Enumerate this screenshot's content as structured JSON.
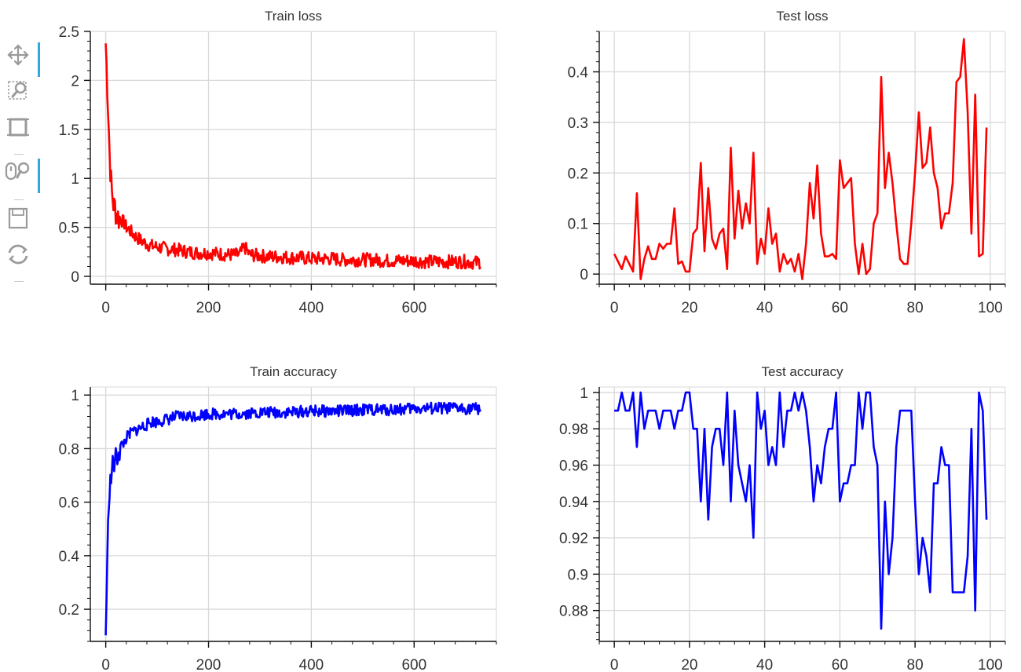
{
  "toolbar": {
    "tools": [
      {
        "name": "pan-tool-icon",
        "active": true
      },
      {
        "name": "box-zoom-icon",
        "active": false
      },
      {
        "name": "reset-tool-icon",
        "active": false
      },
      {
        "name": "wheel-zoom-icon",
        "active": true
      },
      {
        "name": "save-icon",
        "active": false
      },
      {
        "name": "refresh-icon",
        "active": false
      }
    ]
  },
  "chart_data": [
    {
      "type": "line",
      "title": "Train loss",
      "xlabel": "",
      "ylabel": "",
      "xlim": [
        -30,
        760
      ],
      "ylim": [
        -0.08,
        2.5
      ],
      "xticks": [
        0,
        200,
        400,
        600
      ],
      "yticks": [
        0,
        0.5,
        1,
        1.5,
        2,
        2.5
      ],
      "ytick_labels": [
        "0",
        "0.5",
        "1",
        "1.5",
        "2",
        "2.5"
      ],
      "grid": true,
      "series": [
        {
          "color": "#ff0000",
          "x": [
            0,
            2,
            4,
            6,
            8,
            10,
            12,
            14,
            16,
            18,
            20,
            25,
            30,
            35,
            40,
            45,
            50,
            55,
            60,
            65,
            70,
            80,
            90,
            100,
            120,
            140,
            160,
            180,
            200,
            220,
            240,
            260,
            270,
            280,
            300,
            320,
            340,
            360,
            380,
            400,
            420,
            440,
            460,
            480,
            500,
            520,
            540,
            560,
            580,
            600,
            620,
            640,
            660,
            680,
            700,
            720,
            730
          ],
          "y": [
            2.38,
            2.1,
            1.8,
            1.5,
            1.2,
            1.0,
            0.85,
            0.78,
            0.7,
            0.72,
            0.65,
            0.6,
            0.58,
            0.55,
            0.5,
            0.48,
            0.45,
            0.42,
            0.4,
            0.38,
            0.36,
            0.33,
            0.31,
            0.3,
            0.28,
            0.27,
            0.25,
            0.24,
            0.24,
            0.23,
            0.22,
            0.22,
            0.3,
            0.22,
            0.21,
            0.2,
            0.2,
            0.19,
            0.19,
            0.18,
            0.18,
            0.18,
            0.17,
            0.17,
            0.17,
            0.17,
            0.16,
            0.16,
            0.16,
            0.16,
            0.15,
            0.15,
            0.15,
            0.15,
            0.15,
            0.14,
            0.15
          ],
          "noise": 0.07
        }
      ]
    },
    {
      "type": "line",
      "title": "Test loss",
      "xlabel": "",
      "ylabel": "",
      "xlim": [
        -4,
        104
      ],
      "ylim": [
        -0.02,
        0.48
      ],
      "xticks": [
        0,
        20,
        40,
        60,
        80,
        100
      ],
      "yticks": [
        0,
        0.1,
        0.2,
        0.3,
        0.4
      ],
      "ytick_labels": [
        "0",
        "0.1",
        "0.2",
        "0.3",
        "0.4"
      ],
      "grid": true,
      "series": [
        {
          "color": "#ff0000",
          "x": [
            0,
            1,
            2,
            3,
            4,
            5,
            6,
            7,
            8,
            9,
            10,
            11,
            12,
            13,
            14,
            15,
            16,
            17,
            18,
            19,
            20,
            21,
            22,
            23,
            24,
            25,
            26,
            27,
            28,
            29,
            30,
            31,
            32,
            33,
            34,
            35,
            36,
            37,
            38,
            39,
            40,
            41,
            42,
            43,
            44,
            45,
            46,
            47,
            48,
            49,
            50,
            51,
            52,
            53,
            54,
            55,
            56,
            57,
            58,
            59,
            60,
            61,
            62,
            63,
            64,
            65,
            66,
            67,
            68,
            69,
            70,
            71,
            72,
            73,
            74,
            75,
            76,
            77,
            78,
            79,
            80,
            81,
            82,
            83,
            84,
            85,
            86,
            87,
            88,
            89,
            90,
            91,
            92,
            93,
            94,
            95,
            96,
            97,
            98,
            99
          ],
          "y": [
            0.04,
            0.025,
            0.01,
            0.035,
            0.02,
            0.005,
            0.16,
            -0.01,
            0.03,
            0.055,
            0.03,
            0.03,
            0.06,
            0.05,
            0.06,
            0.06,
            0.13,
            0.02,
            0.025,
            0.005,
            0.005,
            0.08,
            0.09,
            0.22,
            0.045,
            0.17,
            0.07,
            0.05,
            0.08,
            0.09,
            0.01,
            0.25,
            0.07,
            0.165,
            0.09,
            0.14,
            0.1,
            0.24,
            0.02,
            0.07,
            0.04,
            0.13,
            0.06,
            0.08,
            0.005,
            0.04,
            0.02,
            0.03,
            0.005,
            0.04,
            -0.01,
            0.06,
            0.18,
            0.11,
            0.215,
            0.08,
            0.035,
            0.035,
            0.04,
            0.03,
            0.225,
            0.17,
            0.18,
            0.19,
            0.06,
            0.0,
            0.06,
            0.0,
            0.01,
            0.1,
            0.12,
            0.39,
            0.17,
            0.24,
            0.18,
            0.1,
            0.03,
            0.02,
            0.02,
            0.1,
            0.2,
            0.32,
            0.21,
            0.22,
            0.29,
            0.2,
            0.17,
            0.09,
            0.12,
            0.12,
            0.18,
            0.38,
            0.39,
            0.465,
            0.32,
            0.08,
            0.355,
            0.035,
            0.04,
            0.29
          ]
        }
      ]
    },
    {
      "type": "line",
      "title": "Train accuracy",
      "xlabel": "",
      "ylabel": "",
      "xlim": [
        -30,
        760
      ],
      "ylim": [
        0.08,
        1.03
      ],
      "xticks": [
        0,
        200,
        400,
        600
      ],
      "yticks": [
        0.2,
        0.4,
        0.6,
        0.8,
        1
      ],
      "ytick_labels": [
        "0.2",
        "0.4",
        "0.6",
        "0.8",
        "1"
      ],
      "grid": true,
      "series": [
        {
          "color": "#0000ff",
          "x": [
            0,
            1,
            2,
            3,
            4,
            5,
            6,
            8,
            10,
            12,
            15,
            20,
            25,
            30,
            35,
            40,
            50,
            60,
            70,
            80,
            90,
            100,
            120,
            140,
            160,
            180,
            200,
            250,
            300,
            350,
            400,
            450,
            500,
            550,
            600,
            650,
            700,
            730
          ],
          "y": [
            0.1,
            0.2,
            0.3,
            0.36,
            0.45,
            0.55,
            0.62,
            0.66,
            0.68,
            0.72,
            0.74,
            0.76,
            0.79,
            0.81,
            0.82,
            0.84,
            0.86,
            0.87,
            0.88,
            0.89,
            0.9,
            0.9,
            0.91,
            0.92,
            0.92,
            0.925,
            0.93,
            0.93,
            0.935,
            0.935,
            0.94,
            0.94,
            0.945,
            0.945,
            0.95,
            0.95,
            0.95,
            0.95
          ],
          "noise": 0.022
        }
      ]
    },
    {
      "type": "line",
      "title": "Test accuracy",
      "xlabel": "",
      "ylabel": "",
      "xlim": [
        -4,
        104
      ],
      "ylim": [
        0.863,
        1.003
      ],
      "xticks": [
        0,
        20,
        40,
        60,
        80,
        100
      ],
      "yticks": [
        0.88,
        0.9,
        0.92,
        0.94,
        0.96,
        0.98,
        1
      ],
      "ytick_labels": [
        "0.88",
        "0.9",
        "0.92",
        "0.94",
        "0.96",
        "0.98",
        "1"
      ],
      "grid": true,
      "series": [
        {
          "color": "#0000ff",
          "x": [
            0,
            1,
            2,
            3,
            4,
            5,
            6,
            7,
            8,
            9,
            10,
            11,
            12,
            13,
            14,
            15,
            16,
            17,
            18,
            19,
            20,
            21,
            22,
            23,
            24,
            25,
            26,
            27,
            28,
            29,
            30,
            31,
            32,
            33,
            34,
            35,
            36,
            37,
            38,
            39,
            40,
            41,
            42,
            43,
            44,
            45,
            46,
            47,
            48,
            49,
            50,
            51,
            52,
            53,
            54,
            55,
            56,
            57,
            58,
            59,
            60,
            61,
            62,
            63,
            64,
            65,
            66,
            67,
            68,
            69,
            70,
            71,
            72,
            73,
            74,
            75,
            76,
            77,
            78,
            79,
            80,
            81,
            82,
            83,
            84,
            85,
            86,
            87,
            88,
            89,
            90,
            91,
            92,
            93,
            94,
            95,
            96,
            97,
            98,
            99
          ],
          "y": [
            0.99,
            0.99,
            1.0,
            0.99,
            0.99,
            1.0,
            0.97,
            1.0,
            0.98,
            0.99,
            0.99,
            0.99,
            0.98,
            0.99,
            0.99,
            0.99,
            0.98,
            0.99,
            0.99,
            1.0,
            1.0,
            0.98,
            0.98,
            0.94,
            0.98,
            0.93,
            0.97,
            0.98,
            0.98,
            0.96,
            1.0,
            0.94,
            0.99,
            0.96,
            0.95,
            0.94,
            0.96,
            0.92,
            1.0,
            0.98,
            0.99,
            0.96,
            0.97,
            0.96,
            1.0,
            0.97,
            0.99,
            0.99,
            1.0,
            0.99,
            1.0,
            0.99,
            0.97,
            0.94,
            0.96,
            0.95,
            0.97,
            0.98,
            0.98,
            1.0,
            0.94,
            0.95,
            0.95,
            0.96,
            0.96,
            1.0,
            0.98,
            1.0,
            1.0,
            0.97,
            0.96,
            0.87,
            0.94,
            0.9,
            0.92,
            0.97,
            0.99,
            0.99,
            0.99,
            0.99,
            0.94,
            0.9,
            0.92,
            0.91,
            0.89,
            0.95,
            0.95,
            0.97,
            0.96,
            0.96,
            0.89,
            0.89,
            0.89,
            0.89,
            0.91,
            0.98,
            0.88,
            1.0,
            0.99,
            0.93
          ]
        }
      ]
    }
  ]
}
